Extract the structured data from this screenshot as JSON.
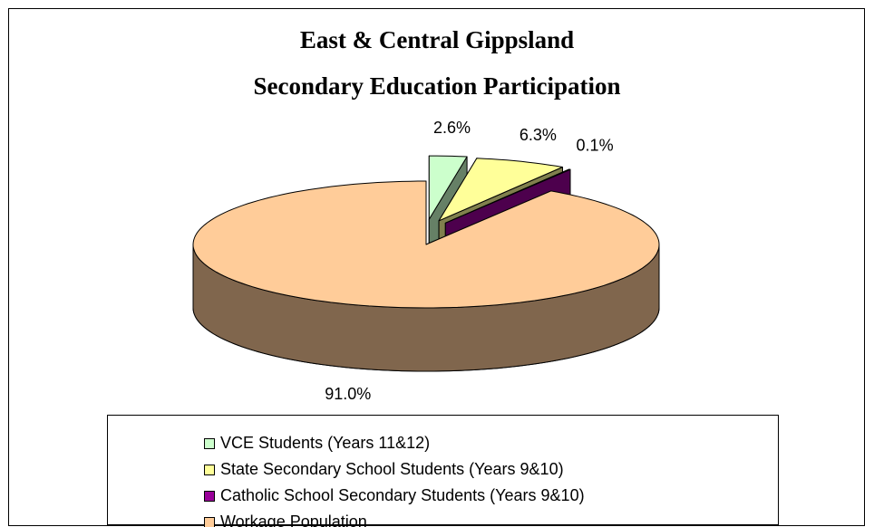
{
  "chart_data": {
    "type": "pie",
    "title": "East & Central Gippsland",
    "subtitle": "Secondary Education Participation",
    "categories": [
      "VCE Students (Years 11&12)",
      "State Secondary School Students (Years 9&10)",
      "Catholic School Secondary Students (Years 9&10)",
      "Workage Population"
    ],
    "values": [
      2.6,
      6.3,
      0.1,
      91.0
    ],
    "value_labels": [
      "2.6%",
      "6.3%",
      "0.1%",
      "91.0%"
    ],
    "colors": [
      "#ccffcc",
      "#ffff99",
      "#990099",
      "#ffcc99"
    ],
    "exploded": [
      true,
      true,
      true,
      false
    ],
    "legend": "bottom"
  }
}
